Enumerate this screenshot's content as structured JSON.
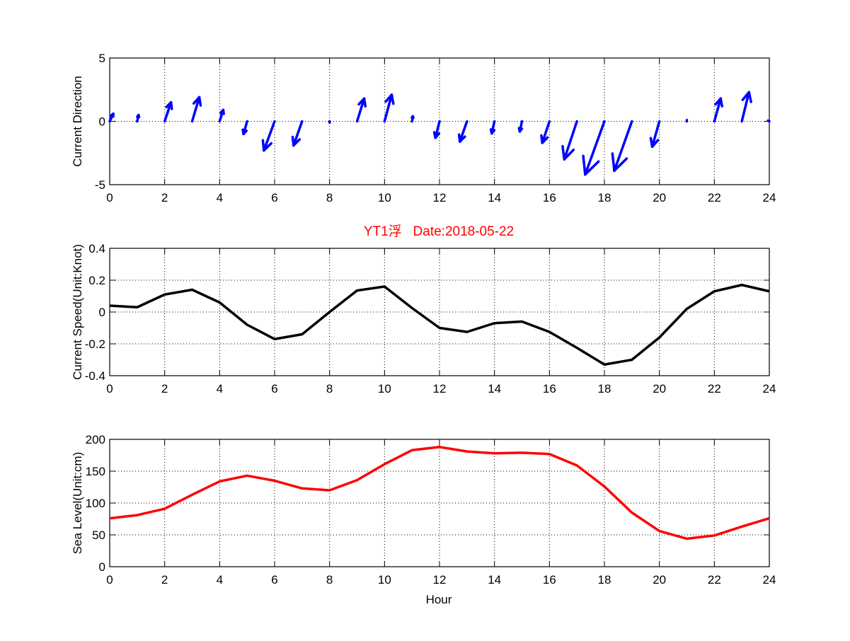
{
  "title": "YT1浮   Date:2018-05-22",
  "chart_data": [
    {
      "type": "quiver",
      "ylabel": "Current Direction",
      "xlabel": "",
      "xlim": [
        0,
        24
      ],
      "ylim": [
        -5,
        5
      ],
      "xticks": [
        0,
        2,
        4,
        6,
        8,
        10,
        12,
        14,
        16,
        18,
        20,
        22,
        24
      ],
      "yticks": [
        -5,
        0,
        5
      ],
      "grid": true,
      "color": "#0000ff",
      "x": [
        0,
        1,
        2,
        3,
        4,
        5,
        6,
        7,
        8,
        9,
        10,
        11,
        12,
        13,
        14,
        15,
        16,
        17,
        18,
        19,
        20,
        21,
        22,
        23,
        24
      ],
      "u": [
        0.13,
        0.05,
        0.23,
        0.26,
        0.13,
        -0.13,
        -0.39,
        -0.31,
        0,
        0.26,
        0.26,
        0.03,
        -0.15,
        -0.26,
        -0.1,
        -0.08,
        -0.26,
        -0.46,
        -0.7,
        -0.64,
        -0.26,
        0,
        0.23,
        0.26,
        -0.05
      ],
      "v": [
        0.6,
        0.5,
        1.5,
        1.9,
        0.9,
        -1.0,
        -2.3,
        -1.9,
        -0.1,
        1.8,
        2.1,
        0.4,
        -1.3,
        -1.6,
        -0.95,
        -0.8,
        -1.7,
        -3.0,
        -4.2,
        -3.9,
        -2.0,
        0.1,
        1.8,
        2.3,
        0.05
      ]
    },
    {
      "type": "line",
      "ylabel": "Current Speed(Unit:Knot)",
      "xlabel": "",
      "xlim": [
        0,
        24
      ],
      "ylim": [
        -0.4,
        0.4
      ],
      "xticks": [
        0,
        2,
        4,
        6,
        8,
        10,
        12,
        14,
        16,
        18,
        20,
        22,
        24
      ],
      "yticks": [
        -0.4,
        -0.2,
        0,
        0.2,
        0.4
      ],
      "ytick_labels": [
        "-0.4",
        "-0.2",
        "0",
        "0.2",
        "0.4"
      ],
      "grid": true,
      "color": "#000000",
      "x": [
        0,
        1,
        2,
        3,
        4,
        5,
        6,
        7,
        8,
        9,
        10,
        11,
        12,
        13,
        14,
        15,
        16,
        17,
        18,
        19,
        20,
        21,
        22,
        23,
        24
      ],
      "y": [
        0.04,
        0.03,
        0.11,
        0.14,
        0.06,
        -0.08,
        -0.17,
        -0.14,
        0.0,
        0.135,
        0.16,
        0.025,
        -0.1,
        -0.125,
        -0.07,
        -0.06,
        -0.125,
        -0.225,
        -0.33,
        -0.3,
        -0.16,
        0.02,
        0.13,
        0.17,
        0.13
      ]
    },
    {
      "type": "line",
      "ylabel": "Sea Level(Unit:cm)",
      "xlabel": "Hour",
      "xlim": [
        0,
        24
      ],
      "ylim": [
        0,
        200
      ],
      "xticks": [
        0,
        2,
        4,
        6,
        8,
        10,
        12,
        14,
        16,
        18,
        20,
        22,
        24
      ],
      "yticks": [
        0,
        50,
        100,
        150,
        200
      ],
      "grid": true,
      "color": "#ff0000",
      "x": [
        0,
        1,
        2,
        3,
        4,
        5,
        6,
        7,
        8,
        9,
        10,
        11,
        12,
        13,
        14,
        15,
        16,
        17,
        18,
        19,
        20,
        21,
        22,
        23,
        24
      ],
      "y": [
        76,
        81,
        91,
        113,
        134,
        143,
        135,
        123,
        120,
        136,
        161,
        183,
        188,
        181,
        178,
        179,
        177,
        159,
        126,
        85,
        56,
        44,
        49,
        63,
        76
      ]
    }
  ]
}
